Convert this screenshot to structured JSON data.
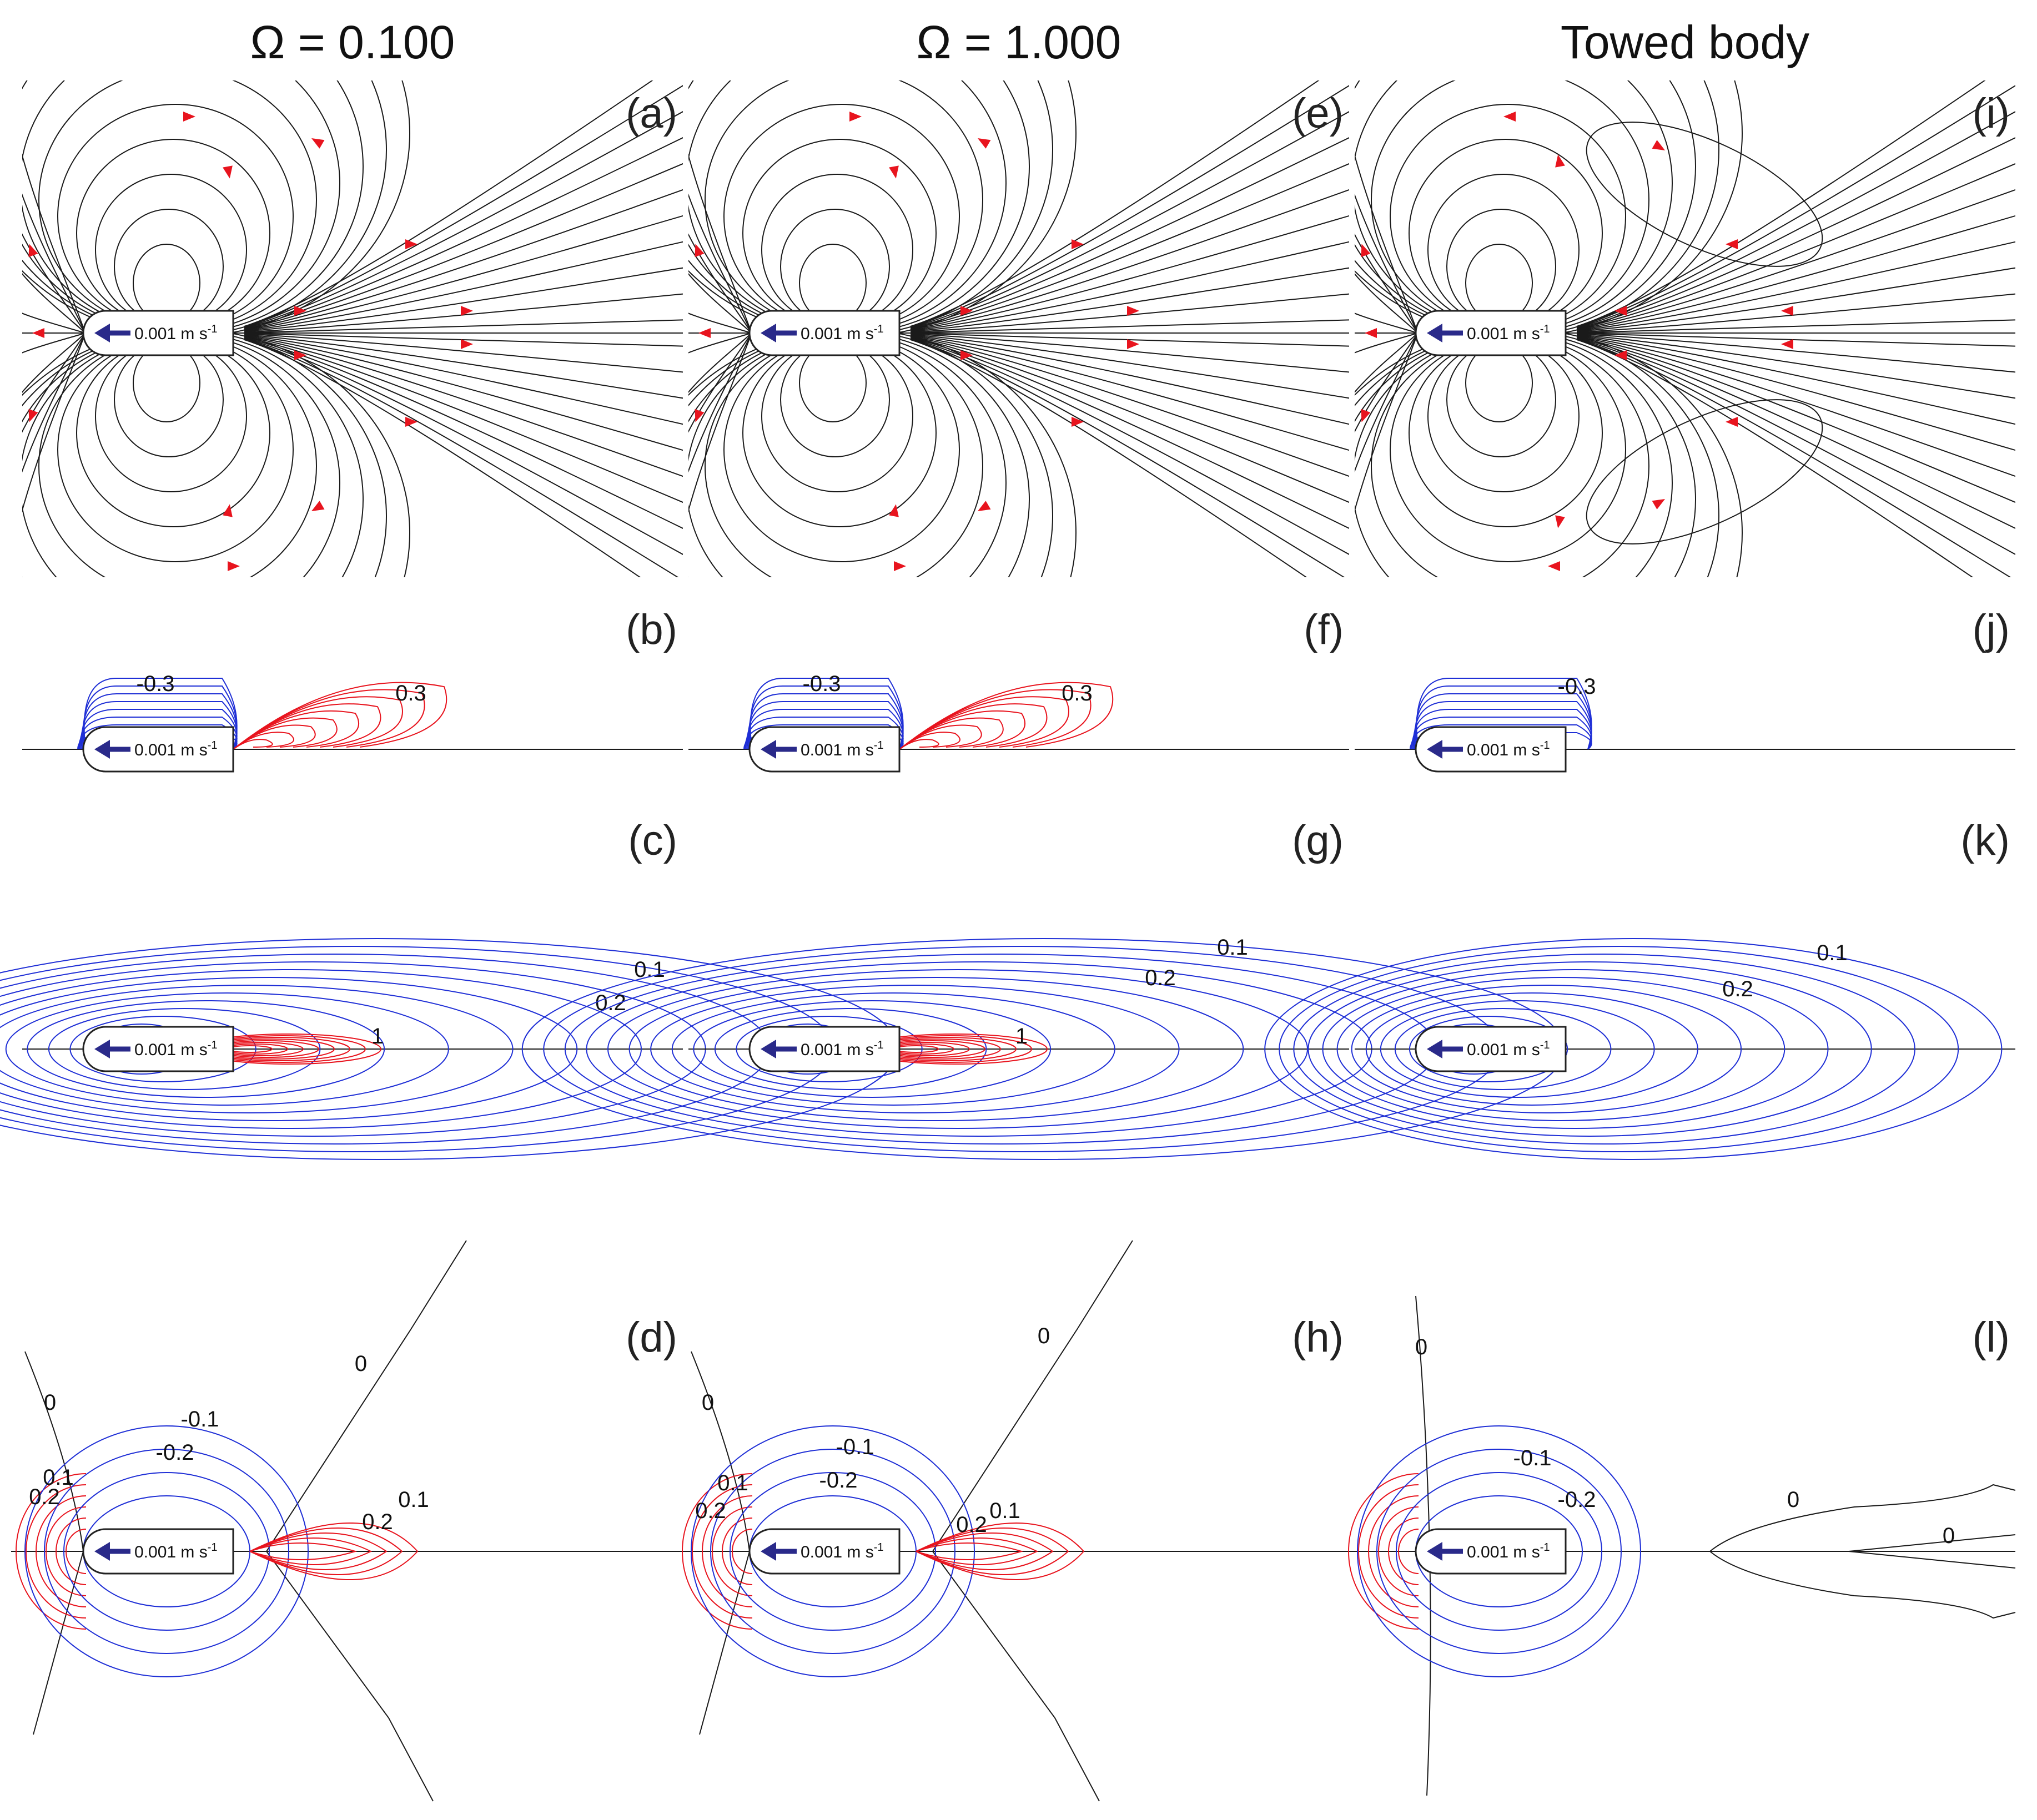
{
  "figure": {
    "columns": [
      {
        "title": "Ω = 0.100",
        "panels": {
          "a": "(a)",
          "b": "(b)",
          "c": "(c)",
          "d": "(d)"
        },
        "labels_b": [
          "-0.3",
          "0.3"
        ],
        "labels_c": [
          "0.1",
          "0.2",
          "1"
        ],
        "labels_d": [
          "0",
          "0",
          "0.1",
          "0.2",
          "-0.1",
          "-0.2",
          "0.1",
          "0.2"
        ]
      },
      {
        "title": "Ω = 1.000",
        "panels": {
          "a": "(e)",
          "b": "(f)",
          "c": "(g)",
          "d": "(h)"
        },
        "labels_b": [
          "-0.3",
          "0.3"
        ],
        "labels_c": [
          "0.1",
          "0.2",
          "1"
        ],
        "labels_d": [
          "0",
          "0",
          "0.1",
          "0.2",
          "-0.1",
          "-0.2",
          "0.2",
          "0.1"
        ]
      },
      {
        "title": "Towed body",
        "panels": {
          "a": "(i)",
          "b": "(j)",
          "c": "(k)",
          "d": "(l)"
        },
        "labels_b": [
          "-0.3"
        ],
        "labels_c": [
          "0.1",
          "0.2"
        ],
        "labels_d": [
          "0",
          "-0.1",
          "-0.2",
          "0",
          "0"
        ]
      }
    ],
    "body_label": {
      "main": "0.001 m s",
      "superscript": "-1"
    },
    "colors": {
      "streamline": "#1a1a1a",
      "arrow": "#e8141e",
      "positive": "#e8141e",
      "negative": "#1f2fd6",
      "zero": "#1a1a1a",
      "body_arrow": "#2a2a8a"
    }
  }
}
